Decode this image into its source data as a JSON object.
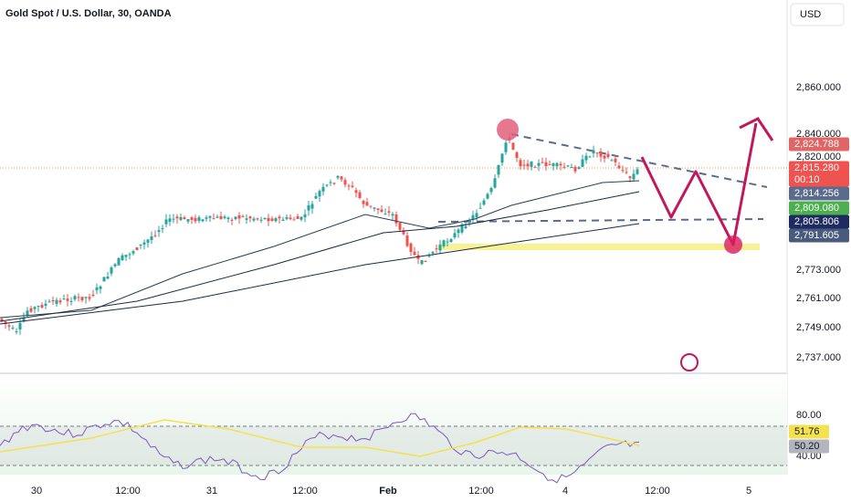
{
  "header": {
    "title": "Gold Spot / U.S. Dollar, 30, OANDA",
    "currency_button": "USD"
  },
  "price_axis": {
    "labels": [
      "2,860.000",
      "2,840.000",
      "2,820.000",
      "2,773.000",
      "2,761.000",
      "2,749.000",
      "2,737.000"
    ]
  },
  "price_tags": [
    {
      "label": "2,824.788"
    },
    {
      "label": "2,815.280",
      "countdown": "00:10"
    },
    {
      "label": "2,814.256"
    },
    {
      "label": "2,809.080"
    },
    {
      "label": "2,805.806"
    },
    {
      "label": "2,791.605"
    }
  ],
  "rsi_axis": {
    "labels": [
      "80.00",
      "40.00"
    ],
    "tags": [
      "51.76",
      "50.20"
    ]
  },
  "time_axis": {
    "labels": [
      "30",
      "12:00",
      "31",
      "12:00",
      "Feb",
      "12:00",
      "4",
      "12:00",
      "5"
    ]
  }
}
